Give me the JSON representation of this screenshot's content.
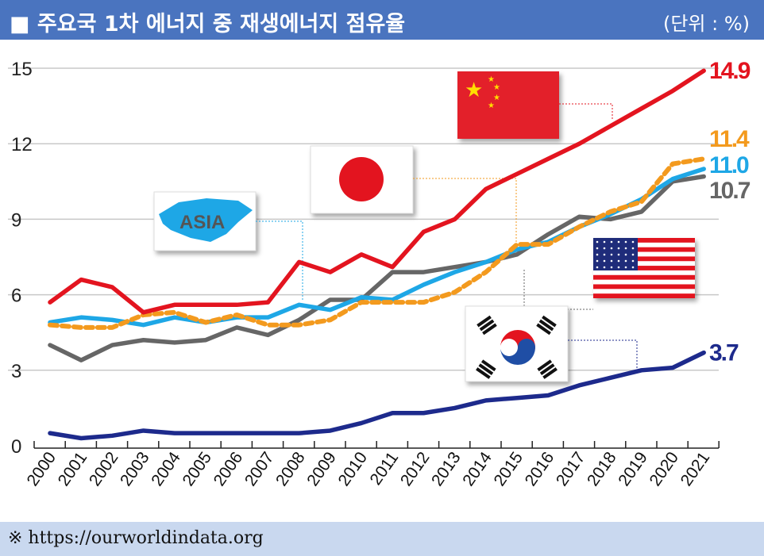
{
  "header": {
    "title": "■ 주요국 1차 에너지 중 재생에너지 점유율",
    "unit": "(단위 : %)"
  },
  "footer": {
    "source": "※ https://ourworldindata.org"
  },
  "chart_data": {
    "type": "line",
    "title": "주요국 1차 에너지 중 재생에너지 점유율",
    "ylabel": "%",
    "xlabel": "",
    "ylim": [
      0,
      15
    ],
    "yticks": [
      0,
      3,
      6,
      9,
      12,
      15
    ],
    "grid": true,
    "x": [
      "2000",
      "2001",
      "2002",
      "2003",
      "2004",
      "2005",
      "2006",
      "2007",
      "2008",
      "2009",
      "2010",
      "2011",
      "2012",
      "2013",
      "2014",
      "2015",
      "2016",
      "2017",
      "2018",
      "2019",
      "2020",
      "2021"
    ],
    "series": [
      {
        "name": "China",
        "color": "#e3141f",
        "dashed": false,
        "end_label": "14.9",
        "values": [
          5.7,
          6.6,
          6.3,
          5.3,
          5.6,
          5.6,
          5.6,
          5.7,
          7.3,
          6.9,
          7.6,
          7.1,
          8.5,
          9.0,
          10.2,
          10.8,
          11.4,
          12.0,
          12.7,
          13.4,
          14.1,
          14.9
        ]
      },
      {
        "name": "Japan",
        "color": "#f39a1e",
        "dashed": true,
        "end_label": "11.4",
        "values": [
          4.8,
          4.7,
          4.7,
          5.2,
          5.3,
          4.9,
          5.2,
          4.8,
          4.8,
          5.0,
          5.7,
          5.7,
          5.7,
          6.1,
          6.9,
          8.0,
          8.0,
          8.7,
          9.3,
          9.7,
          11.2,
          11.4
        ]
      },
      {
        "name": "Asia",
        "color": "#1ea7e6",
        "dashed": false,
        "end_label": "11.0",
        "values": [
          4.9,
          5.1,
          5.0,
          4.8,
          5.1,
          4.9,
          5.1,
          5.1,
          5.6,
          5.4,
          5.9,
          5.8,
          6.4,
          6.9,
          7.3,
          7.8,
          8.1,
          8.7,
          9.2,
          9.8,
          10.6,
          11.0
        ]
      },
      {
        "name": "United States",
        "color": "#666666",
        "dashed": false,
        "end_label": "10.7",
        "values": [
          4.0,
          3.4,
          4.0,
          4.2,
          4.1,
          4.2,
          4.7,
          4.4,
          5.0,
          5.8,
          5.8,
          6.9,
          6.9,
          7.1,
          7.3,
          7.6,
          8.4,
          9.1,
          9.0,
          9.3,
          10.5,
          10.7
        ]
      },
      {
        "name": "South Korea",
        "color": "#1d2a8c",
        "dashed": false,
        "end_label": "3.7",
        "values": [
          0.5,
          0.3,
          0.4,
          0.6,
          0.5,
          0.5,
          0.5,
          0.5,
          0.5,
          0.6,
          0.9,
          1.3,
          1.3,
          1.5,
          1.8,
          1.9,
          2.0,
          2.4,
          2.7,
          3.0,
          3.1,
          3.7
        ]
      }
    ],
    "annotations": {
      "asia_label": "ASIA"
    }
  }
}
